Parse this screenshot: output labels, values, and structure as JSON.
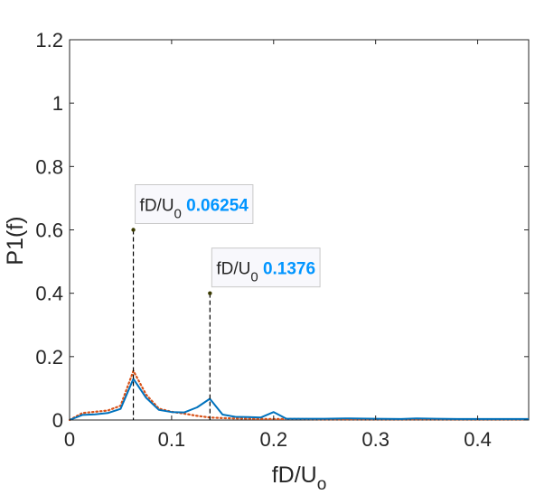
{
  "chart_data": {
    "type": "line",
    "xlabel": "fD/U",
    "xlabel_subscript": "o",
    "ylabel": "P1(f)",
    "xlim": [
      0,
      0.45
    ],
    "ylim": [
      0,
      1.2
    ],
    "xticks": [
      0,
      0.1,
      0.2,
      0.3,
      0.4
    ],
    "xtick_labels": [
      "0",
      "0.1",
      "0.2",
      "0.3",
      "0.4"
    ],
    "yticks": [
      0,
      0.2,
      0.4,
      0.6,
      0.8,
      1,
      1.2
    ],
    "ytick_labels": [
      "0",
      "0.2",
      "0.4",
      "0.6",
      "0.8",
      "1",
      "1.2"
    ],
    "grid": false,
    "series": [
      {
        "color": "#0072BD",
        "style": "solid",
        "x": [
          0,
          0.0125,
          0.025,
          0.0375,
          0.05,
          0.0625,
          0.075,
          0.0875,
          0.1,
          0.1125,
          0.125,
          0.1375,
          0.15,
          0.1625,
          0.175,
          0.1875,
          0.2,
          0.2125,
          0.225,
          0.25,
          0.275,
          0.3,
          0.325,
          0.34,
          0.36,
          0.38,
          0.4,
          0.425,
          0.45
        ],
        "values": [
          0.0,
          0.016,
          0.018,
          0.022,
          0.035,
          0.13,
          0.07,
          0.032,
          0.025,
          0.024,
          0.04,
          0.067,
          0.017,
          0.01,
          0.009,
          0.008,
          0.025,
          0.004,
          0.004,
          0.004,
          0.005,
          0.004,
          0.003,
          0.005,
          0.004,
          0.003,
          0.003,
          0.003,
          0.003
        ]
      },
      {
        "color": "#D95319",
        "style": "dotted",
        "x": [
          0,
          0.0125,
          0.025,
          0.0375,
          0.05,
          0.0625,
          0.075,
          0.0875,
          0.1,
          0.1125,
          0.125,
          0.1375,
          0.15,
          0.175,
          0.2,
          0.225,
          0.25,
          0.3,
          0.35,
          0.4,
          0.45
        ],
        "values": [
          0.0,
          0.022,
          0.026,
          0.03,
          0.045,
          0.155,
          0.08,
          0.036,
          0.026,
          0.02,
          0.013,
          0.008,
          0.006,
          0.004,
          0.003,
          0.003,
          0.002,
          0.002,
          0.002,
          0.002,
          0.002
        ]
      }
    ],
    "datatips": [
      {
        "x": 0.0625,
        "y": 0.6,
        "label": "fD/U",
        "label_subscript": "0",
        "value": "0.06254"
      },
      {
        "x": 0.1376,
        "y": 0.4,
        "label": "fD/U",
        "label_subscript": "0",
        "value": "0.1376"
      }
    ],
    "colors": {
      "axis": "#262626",
      "datatip_value": "#0095ff",
      "datatip_bg": "#f8f8fc",
      "datatip_border": "#c8c8c8"
    }
  }
}
